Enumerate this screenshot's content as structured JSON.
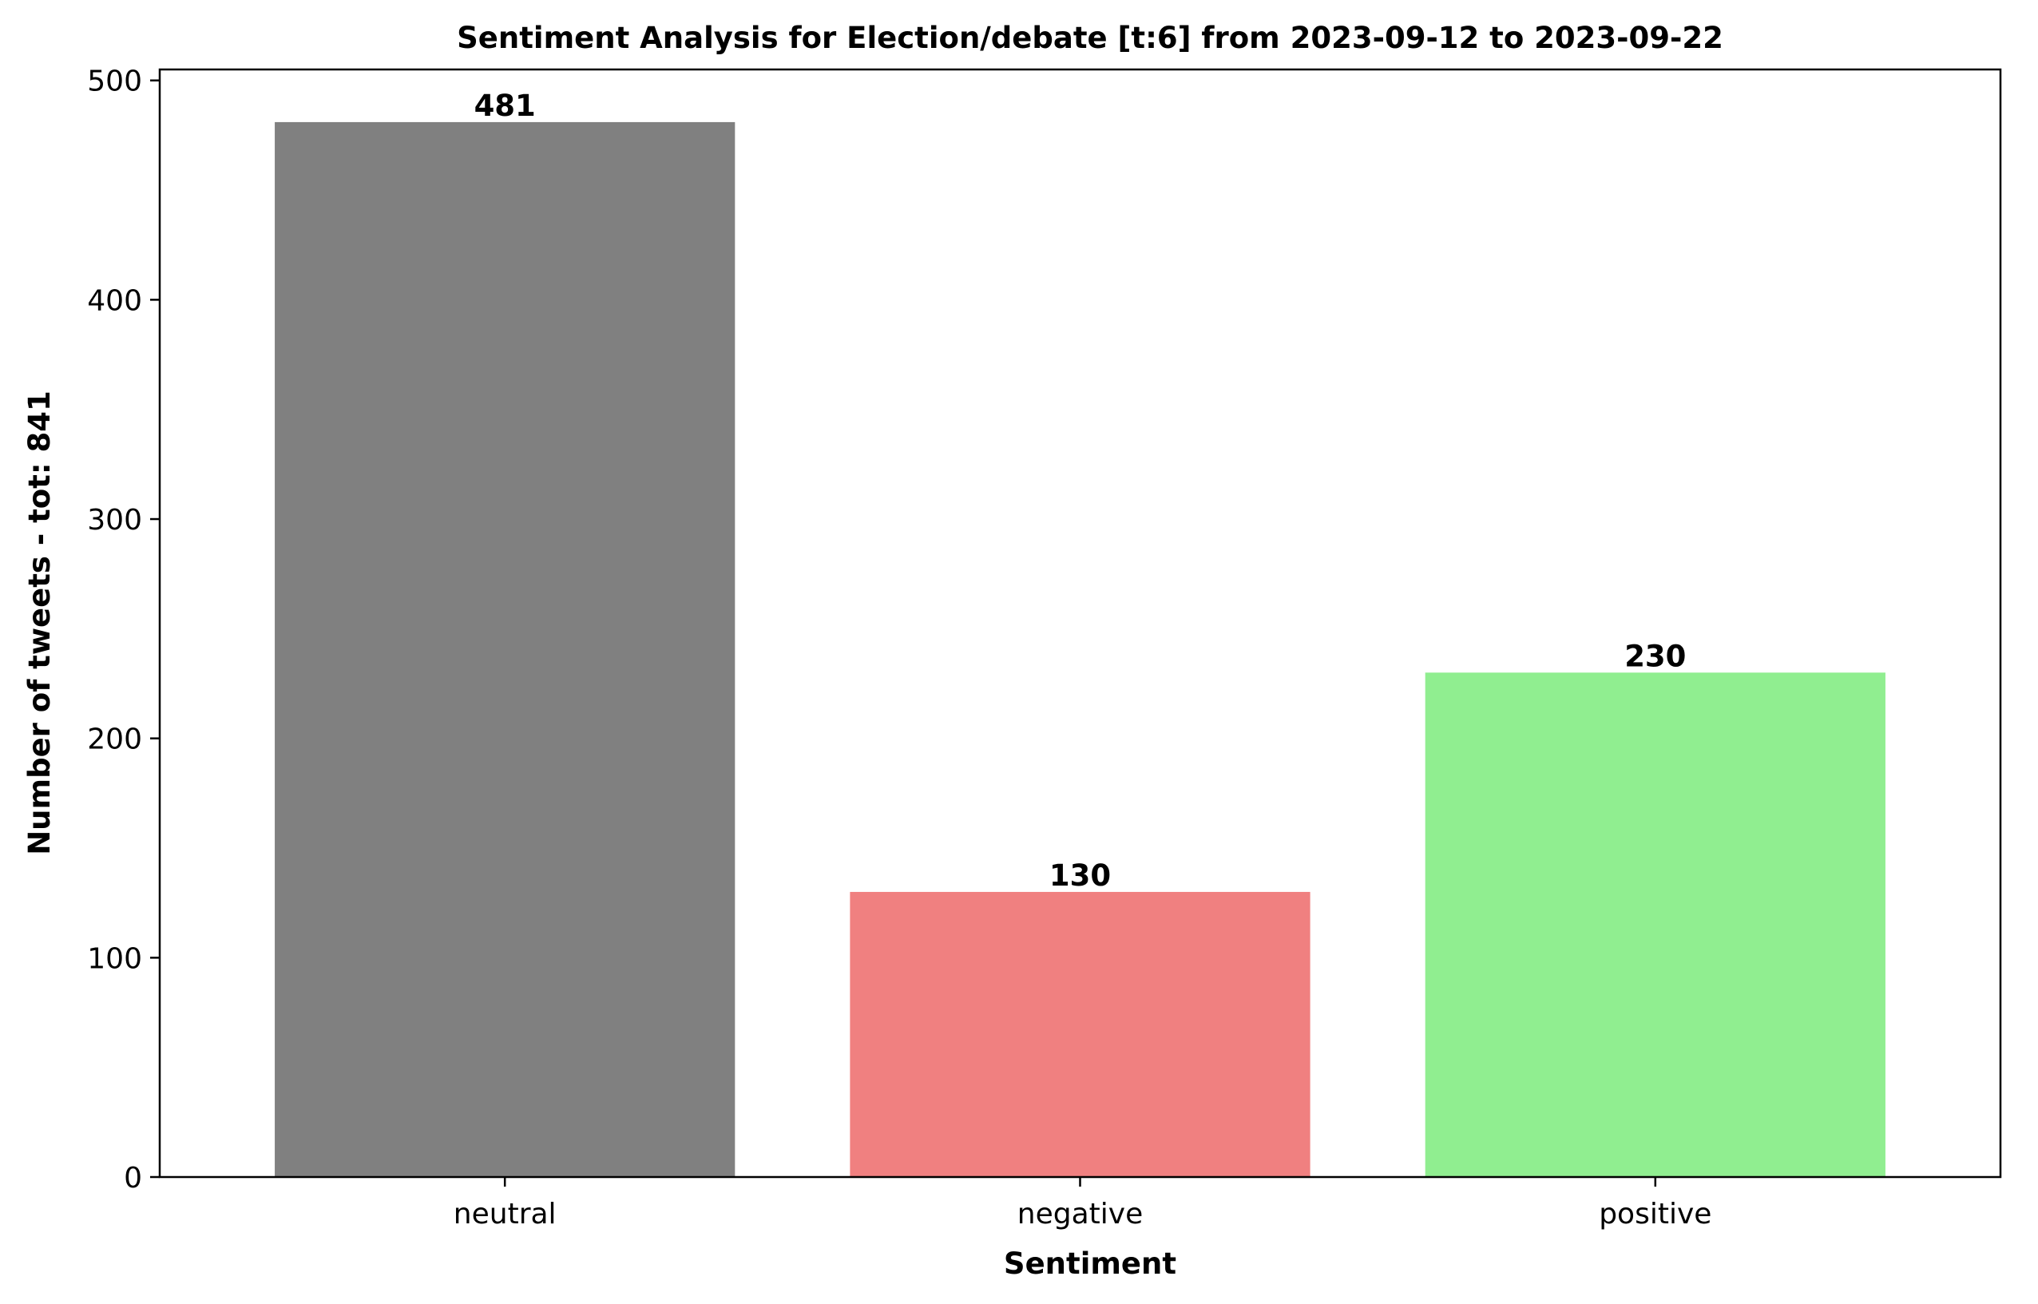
{
  "chart_data": {
    "type": "bar",
    "title": "Sentiment Analysis for Election/debate [t:6] from 2023-09-12 to 2023-09-22",
    "xlabel": "Sentiment",
    "ylabel": "Number of tweets - tot: 841",
    "categories": [
      "neutral",
      "negative",
      "positive"
    ],
    "values": [
      481,
      130,
      230
    ],
    "colors": [
      "#808080",
      "#f08080",
      "#90ee90"
    ],
    "data_labels": [
      "481",
      "130",
      "230"
    ],
    "ylim": [
      0,
      505
    ],
    "yticks": [
      0,
      100,
      200,
      300,
      400,
      500
    ],
    "grid": false,
    "legend": false
  }
}
